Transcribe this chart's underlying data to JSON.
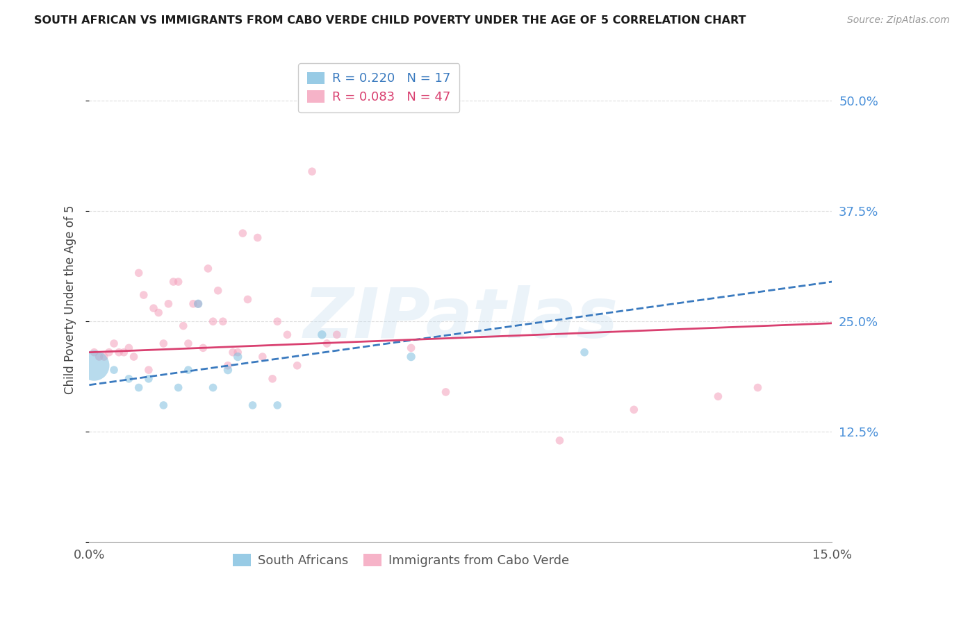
{
  "title": "SOUTH AFRICAN VS IMMIGRANTS FROM CABO VERDE CHILD POVERTY UNDER THE AGE OF 5 CORRELATION CHART",
  "source": "Source: ZipAtlas.com",
  "ylabel": "Child Poverty Under the Age of 5",
  "xlim": [
    0.0,
    0.15
  ],
  "ylim": [
    0.0,
    0.55
  ],
  "yticks": [
    0.0,
    0.125,
    0.25,
    0.375,
    0.5
  ],
  "ytick_labels": [
    "",
    "12.5%",
    "25.0%",
    "37.5%",
    "50.0%"
  ],
  "xticks": [
    0.0,
    0.05,
    0.1,
    0.15
  ],
  "xtick_labels": [
    "0.0%",
    "",
    "",
    "15.0%"
  ],
  "label1": "South Africans",
  "label2": "Immigrants from Cabo Verde",
  "color1": "#7fbfdf",
  "color2": "#f4a0bb",
  "trend_color1": "#3a7abf",
  "trend_color2": "#d94070",
  "watermark": "ZIPatlas",
  "sa_trend_x": [
    0.0,
    0.15
  ],
  "sa_trend_y": [
    0.178,
    0.295
  ],
  "cv_trend_x": [
    0.0,
    0.15
  ],
  "cv_trend_y": [
    0.215,
    0.248
  ],
  "south_african_x": [
    0.001,
    0.005,
    0.008,
    0.01,
    0.012,
    0.015,
    0.018,
    0.02,
    0.022,
    0.025,
    0.028,
    0.03,
    0.033,
    0.038,
    0.047,
    0.065,
    0.1
  ],
  "south_african_y": [
    0.2,
    0.195,
    0.185,
    0.175,
    0.185,
    0.155,
    0.175,
    0.195,
    0.27,
    0.175,
    0.195,
    0.21,
    0.155,
    0.155,
    0.235,
    0.21,
    0.215
  ],
  "south_african_size": [
    1000,
    70,
    70,
    70,
    70,
    70,
    70,
    70,
    80,
    70,
    80,
    80,
    70,
    70,
    80,
    80,
    70
  ],
  "cabo_verde_x": [
    0.001,
    0.002,
    0.003,
    0.004,
    0.005,
    0.006,
    0.007,
    0.008,
    0.009,
    0.01,
    0.011,
    0.012,
    0.013,
    0.014,
    0.015,
    0.016,
    0.017,
    0.018,
    0.019,
    0.02,
    0.021,
    0.022,
    0.023,
    0.024,
    0.025,
    0.026,
    0.027,
    0.028,
    0.029,
    0.03,
    0.031,
    0.032,
    0.034,
    0.035,
    0.037,
    0.038,
    0.04,
    0.042,
    0.045,
    0.048,
    0.05,
    0.065,
    0.072,
    0.095,
    0.11,
    0.127,
    0.135
  ],
  "cabo_verde_y": [
    0.215,
    0.21,
    0.21,
    0.215,
    0.225,
    0.215,
    0.215,
    0.22,
    0.21,
    0.305,
    0.28,
    0.195,
    0.265,
    0.26,
    0.225,
    0.27,
    0.295,
    0.295,
    0.245,
    0.225,
    0.27,
    0.27,
    0.22,
    0.31,
    0.25,
    0.285,
    0.25,
    0.2,
    0.215,
    0.215,
    0.35,
    0.275,
    0.345,
    0.21,
    0.185,
    0.25,
    0.235,
    0.2,
    0.42,
    0.225,
    0.235,
    0.22,
    0.17,
    0.115,
    0.15,
    0.165,
    0.175
  ],
  "cabo_verde_size": [
    70,
    70,
    70,
    70,
    70,
    70,
    70,
    70,
    70,
    70,
    70,
    70,
    70,
    70,
    70,
    70,
    70,
    70,
    70,
    70,
    70,
    70,
    70,
    70,
    70,
    70,
    70,
    70,
    70,
    70,
    70,
    70,
    70,
    70,
    70,
    70,
    70,
    70,
    70,
    70,
    70,
    70,
    70,
    70,
    70,
    70,
    70
  ],
  "background_color": "#ffffff",
  "grid_color": "#dddddd",
  "title_fontsize": 11.5,
  "source_fontsize": 10,
  "tick_fontsize": 13,
  "ylabel_fontsize": 12,
  "legend_fontsize": 13
}
